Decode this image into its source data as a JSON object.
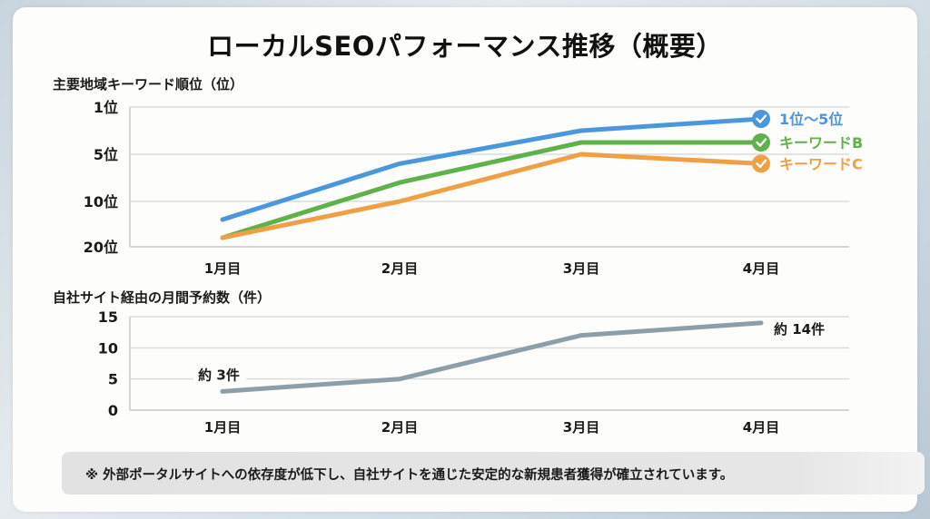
{
  "title": "ローカルSEOパフォーマンス推移（概要）",
  "footnote": "※ 外部ポータルサイトへの依存度が低下し、自社サイトを通じた安定的な新規患者獲得が確立されています。",
  "chart_data": [
    {
      "type": "line",
      "title": "主要地域キーワード順位（位）",
      "xlabel": "",
      "ylabel": "順位",
      "categories": [
        "1月目",
        "2月目",
        "3月目",
        "4月目"
      ],
      "y_ticks": [
        1,
        5,
        10,
        20
      ],
      "y_tick_labels": [
        "1位",
        "5位",
        "10位",
        "20位"
      ],
      "y_inverted": true,
      "ylim": [
        20,
        1
      ],
      "grid": true,
      "legend_position": "right-end-of-lines",
      "series": [
        {
          "name": "1位〜5位",
          "color": "#4a97dd",
          "values": [
            14,
            6,
            3,
            2
          ]
        },
        {
          "name": "キーワードB",
          "color": "#5fb14a",
          "values": [
            18,
            8,
            4,
            4
          ]
        },
        {
          "name": "キーワードC",
          "color": "#f0a044",
          "values": [
            18,
            10,
            5,
            6
          ]
        }
      ]
    },
    {
      "type": "line",
      "title": "自社サイト経由の月間予約数（件）",
      "xlabel": "",
      "ylabel": "件",
      "categories": [
        "1月目",
        "2月目",
        "3月目",
        "4月目"
      ],
      "y_ticks": [
        0,
        5,
        10,
        15
      ],
      "y_tick_labels": [
        "0",
        "5",
        "10",
        "15"
      ],
      "ylim": [
        0,
        15
      ],
      "grid": true,
      "series": [
        {
          "name": "月間予約数",
          "color": "#8c9ea8",
          "values": [
            3,
            5,
            12,
            14
          ]
        }
      ],
      "annotations": [
        {
          "category": "1月目",
          "text": "約 3件"
        },
        {
          "category": "4月目",
          "text": "約 14件"
        }
      ]
    }
  ]
}
